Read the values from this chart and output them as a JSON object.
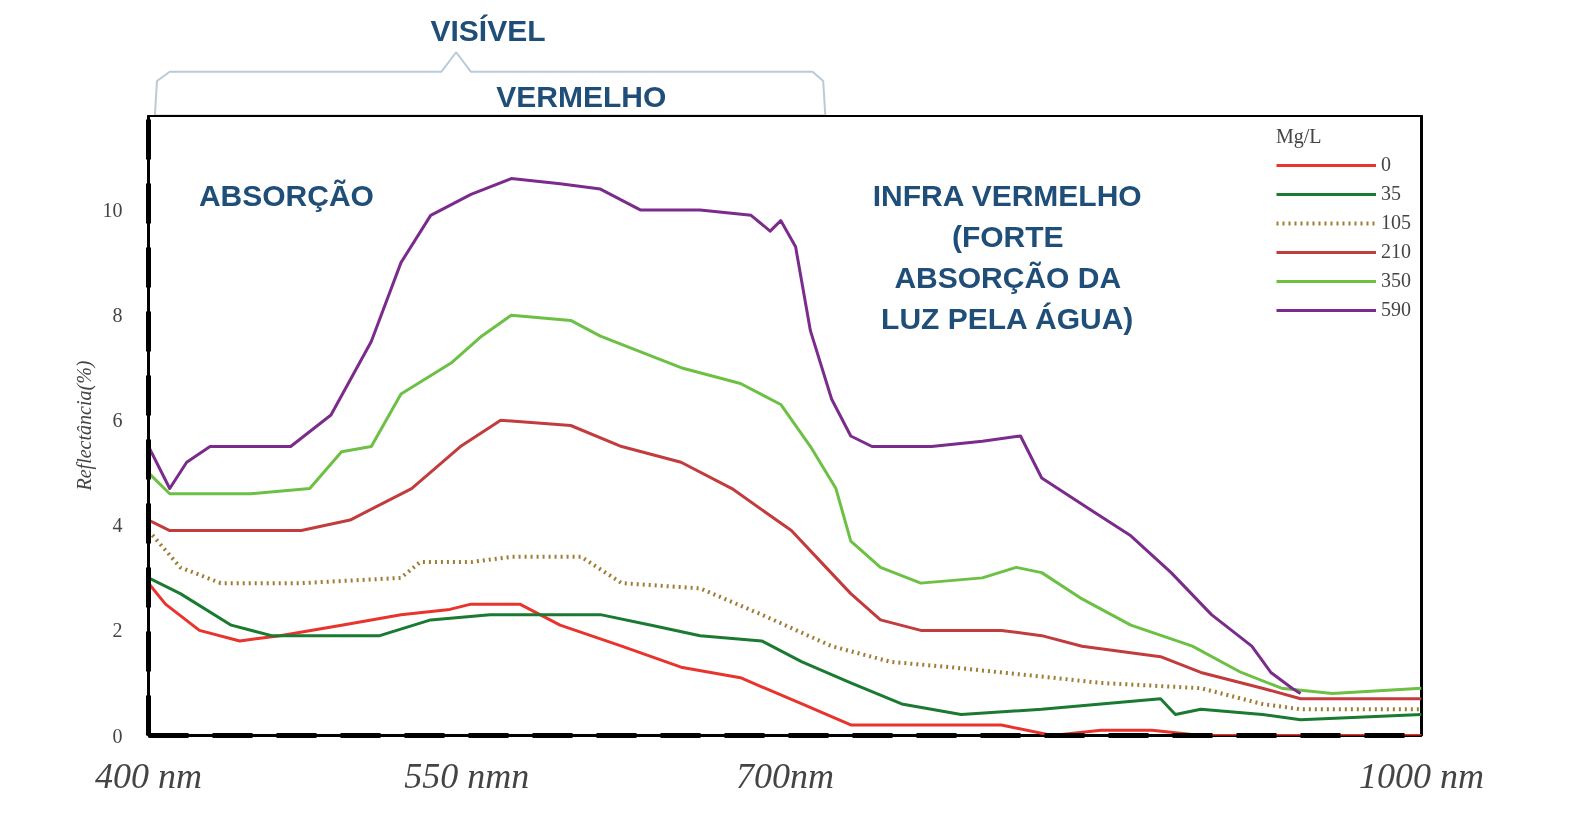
{
  "chart_data": {
    "type": "line",
    "ylabel": "Reflectância(%)",
    "legend_title": "Mg/L",
    "legend": "top right",
    "annotations": [
      "VISÍVEL",
      "VERMELHO",
      "ABSORÇÃO",
      "INFRA VERMELHO (FORTE ABSORÇÃO DA LUZ PELA ÁGUA)"
    ],
    "xlim": [
      400,
      1000
    ],
    "ylim": [
      0,
      11.8
    ],
    "xticks": [
      {
        "value": 400,
        "label": "400 nm"
      },
      {
        "value": 550,
        "label": "550 nmn"
      },
      {
        "value": 700,
        "label": "700nm"
      },
      {
        "value": 1000,
        "label": "1000 nm"
      }
    ],
    "yticks": [
      0,
      2,
      4,
      6,
      8,
      10
    ],
    "series": [
      {
        "name": "0",
        "color": "#e8342c",
        "line_style": "solid",
        "x": [
          400,
          408,
          424,
          443,
          462,
          491,
          519,
          542,
          552,
          575,
          594,
          623,
          651,
          679,
          708,
          731,
          764,
          802,
          826,
          849,
          873,
          896,
          943,
          1000
        ],
        "values": [
          2.9,
          2.5,
          2.0,
          1.8,
          1.9,
          2.1,
          2.3,
          2.4,
          2.5,
          2.5,
          2.1,
          1.7,
          1.3,
          1.1,
          0.6,
          0.2,
          0.2,
          0.2,
          0.0,
          0.1,
          0.1,
          0.0,
          0.0,
          0.0
        ]
      },
      {
        "name": "35",
        "color": "#1a7a32",
        "line_style": "solid",
        "x": [
          400,
          415,
          439,
          458,
          486,
          509,
          533,
          561,
          594,
          613,
          637,
          660,
          689,
          708,
          731,
          755,
          783,
          821,
          849,
          877,
          884,
          896,
          925,
          943,
          1000
        ],
        "values": [
          3.0,
          2.7,
          2.1,
          1.9,
          1.9,
          1.9,
          2.2,
          2.3,
          2.3,
          2.3,
          2.1,
          1.9,
          1.8,
          1.4,
          1.0,
          0.6,
          0.4,
          0.5,
          0.6,
          0.7,
          0.4,
          0.5,
          0.4,
          0.3,
          0.4
        ]
      },
      {
        "name": "105",
        "color": "#a07c34",
        "line_style": "dotted",
        "x": [
          400,
          415,
          434,
          472,
          519,
          528,
          552,
          571,
          604,
          623,
          660,
          689,
          722,
          750,
          778,
          826,
          849,
          896,
          925,
          943,
          1000
        ],
        "values": [
          3.9,
          3.2,
          2.9,
          2.9,
          3.0,
          3.3,
          3.3,
          3.4,
          3.4,
          2.9,
          2.8,
          2.3,
          1.7,
          1.4,
          1.3,
          1.1,
          1.0,
          0.9,
          0.6,
          0.5,
          0.5
        ]
      },
      {
        "name": "210",
        "color": "#c23b3d",
        "line_style": "solid",
        "x": [
          400,
          410,
          472,
          495,
          524,
          547,
          566,
          599,
          623,
          651,
          675,
          703,
          717,
          731,
          745,
          764,
          802,
          821,
          840,
          877,
          896,
          925,
          943,
          1000
        ],
        "values": [
          4.1,
          3.9,
          3.9,
          4.1,
          4.7,
          5.5,
          6.0,
          5.9,
          5.5,
          5.2,
          4.7,
          3.9,
          3.3,
          2.7,
          2.2,
          2.0,
          2.0,
          1.9,
          1.7,
          1.5,
          1.2,
          0.9,
          0.7,
          0.7
        ]
      },
      {
        "name": "350",
        "color": "#6cc043",
        "line_style": "solid",
        "x": [
          400,
          410,
          448,
          476,
          491,
          505,
          519,
          543,
          557,
          571,
          599,
          613,
          651,
          679,
          698,
          712,
          724,
          731,
          745,
          764,
          793,
          809,
          821,
          840,
          863,
          892,
          915,
          934,
          958,
          1000
        ],
        "values": [
          5.0,
          4.6,
          4.6,
          4.7,
          5.4,
          5.5,
          6.5,
          7.1,
          7.6,
          8.0,
          7.9,
          7.6,
          7.0,
          6.7,
          6.3,
          5.5,
          4.7,
          3.7,
          3.2,
          2.9,
          3.0,
          3.2,
          3.1,
          2.6,
          2.1,
          1.7,
          1.2,
          0.9,
          0.8,
          0.9
        ]
      },
      {
        "name": "590",
        "color": "#7b2b8c",
        "line_style": "solid",
        "x": [
          400,
          410,
          418,
          429,
          448,
          467,
          486,
          505,
          519,
          533,
          552,
          571,
          594,
          613,
          632,
          660,
          684,
          693,
          698,
          705,
          712,
          722,
          731,
          741,
          769,
          793,
          811,
          821,
          840,
          863,
          882,
          901,
          920,
          929,
          939,
          943
        ],
        "values": [
          5.5,
          4.7,
          5.2,
          5.5,
          5.5,
          5.5,
          6.1,
          7.5,
          9.0,
          9.9,
          10.3,
          10.6,
          10.5,
          10.4,
          10.0,
          10.0,
          9.9,
          9.6,
          9.8,
          9.3,
          7.7,
          6.4,
          5.7,
          5.5,
          5.5,
          5.6,
          5.7,
          4.9,
          4.4,
          3.8,
          3.1,
          2.3,
          1.7,
          1.2,
          0.9,
          0.8
        ]
      }
    ]
  }
}
